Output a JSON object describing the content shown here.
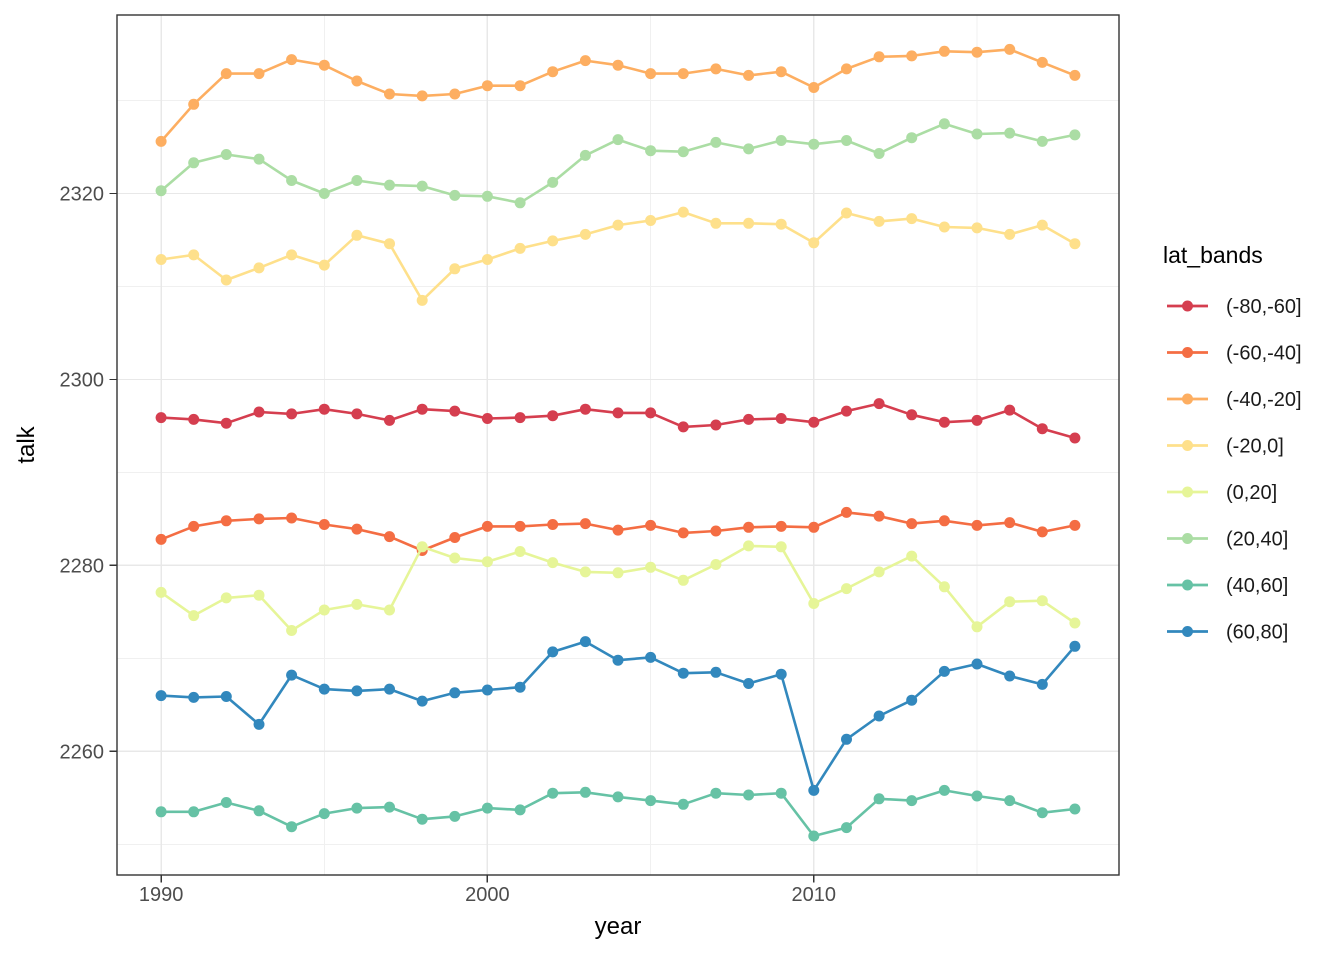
{
  "figure": {
    "background": "#ffffff",
    "panel_border_color": "#343434",
    "grid_major_color": "#e8e8e8",
    "grid_minor_color": "#f0f0f0",
    "tick_color": "#343434",
    "tick_label_color": "#4d4d4d"
  },
  "chart_data": {
    "type": "line",
    "title": "",
    "xlabel": "year",
    "ylabel": "talk",
    "legend_title": "lat_bands",
    "legend_position": "right",
    "grid": true,
    "xlim": [
      1988.65,
      2019.35
    ],
    "ylim": [
      2246.7,
      2339.2
    ],
    "x_major_ticks": [
      1990,
      2000,
      2010
    ],
    "x_minor_gridlines": [
      1995,
      2005,
      2015
    ],
    "y_major_ticks": [
      2260,
      2280,
      2300,
      2320
    ],
    "y_minor_gridlines": [
      2250,
      2270,
      2290,
      2310,
      2330
    ],
    "x": [
      1990,
      1991,
      1992,
      1993,
      1994,
      1995,
      1996,
      1997,
      1998,
      1999,
      2000,
      2001,
      2002,
      2003,
      2004,
      2005,
      2006,
      2007,
      2008,
      2009,
      2010,
      2011,
      2012,
      2013,
      2014,
      2015,
      2016,
      2017,
      2018
    ],
    "series": [
      {
        "name": "(-80,-60]",
        "color": "#d53e4f",
        "values": [
          2295.9,
          2295.7,
          2295.3,
          2296.5,
          2296.3,
          2296.8,
          2296.3,
          2295.6,
          2296.8,
          2296.6,
          2295.8,
          2295.9,
          2296.1,
          2296.8,
          2296.4,
          2296.4,
          2294.9,
          2295.1,
          2295.7,
          2295.8,
          2295.4,
          2296.6,
          2297.4,
          2296.2,
          2295.4,
          2295.6,
          2296.7,
          2294.7,
          2293.7
        ]
      },
      {
        "name": "(-60,-40]",
        "color": "#f46d43",
        "values": [
          2282.8,
          2284.2,
          2284.8,
          2285.0,
          2285.1,
          2284.4,
          2283.9,
          2283.1,
          2281.6,
          2283.0,
          2284.2,
          2284.2,
          2284.4,
          2284.5,
          2283.8,
          2284.3,
          2283.5,
          2283.7,
          2284.1,
          2284.2,
          2284.1,
          2285.7,
          2285.3,
          2284.5,
          2284.8,
          2284.3,
          2284.6,
          2283.6,
          2284.3
        ]
      },
      {
        "name": "(-40,-20]",
        "color": "#fdae61",
        "values": [
          2325.6,
          2329.6,
          2332.9,
          2332.9,
          2334.4,
          2333.8,
          2332.1,
          2330.7,
          2330.5,
          2330.7,
          2331.6,
          2331.6,
          2333.1,
          2334.3,
          2333.8,
          2332.9,
          2332.9,
          2333.4,
          2332.7,
          2333.1,
          2331.4,
          2333.4,
          2334.7,
          2334.8,
          2335.3,
          2335.2,
          2335.5,
          2334.1,
          2332.7
        ]
      },
      {
        "name": "(-20,0]",
        "color": "#fee08b",
        "values": [
          2312.9,
          2313.4,
          2310.7,
          2312.0,
          2313.4,
          2312.3,
          2315.5,
          2314.6,
          2308.5,
          2311.9,
          2312.9,
          2314.1,
          2314.9,
          2315.6,
          2316.6,
          2317.1,
          2318.0,
          2316.8,
          2316.8,
          2316.7,
          2314.7,
          2317.9,
          2317.0,
          2317.3,
          2316.4,
          2316.3,
          2315.6,
          2316.6,
          2314.6
        ]
      },
      {
        "name": "(0,20]",
        "color": "#e6f598",
        "values": [
          2277.1,
          2274.6,
          2276.5,
          2276.8,
          2273.0,
          2275.2,
          2275.8,
          2275.2,
          2282.0,
          2280.8,
          2280.4,
          2281.5,
          2280.3,
          2279.3,
          2279.2,
          2279.8,
          2278.4,
          2280.1,
          2282.1,
          2282.0,
          2275.9,
          2277.5,
          2279.3,
          2281.0,
          2277.7,
          2273.4,
          2276.1,
          2276.2,
          2273.8
        ]
      },
      {
        "name": "(20,40]",
        "color": "#abdda4",
        "values": [
          2320.3,
          2323.3,
          2324.2,
          2323.7,
          2321.4,
          2320.0,
          2321.4,
          2320.9,
          2320.8,
          2319.8,
          2319.7,
          2319.0,
          2321.2,
          2324.1,
          2325.8,
          2324.6,
          2324.5,
          2325.5,
          2324.8,
          2325.7,
          2325.3,
          2325.7,
          2324.3,
          2326.0,
          2327.5,
          2326.4,
          2326.5,
          2325.6,
          2326.3
        ]
      },
      {
        "name": "(40,60]",
        "color": "#66c2a5",
        "values": [
          2253.5,
          2253.5,
          2254.5,
          2253.6,
          2251.9,
          2253.3,
          2253.9,
          2254.0,
          2252.7,
          2253.0,
          2253.9,
          2253.7,
          2255.5,
          2255.6,
          2255.1,
          2254.7,
          2254.3,
          2255.5,
          2255.3,
          2255.5,
          2250.9,
          2251.8,
          2254.9,
          2254.7,
          2255.8,
          2255.2,
          2254.7,
          2253.4,
          2253.8
        ]
      },
      {
        "name": "(60,80]",
        "color": "#3288bd",
        "values": [
          2266.0,
          2265.8,
          2265.9,
          2262.9,
          2268.2,
          2266.7,
          2266.5,
          2266.7,
          2265.4,
          2266.3,
          2266.6,
          2266.9,
          2270.7,
          2271.8,
          2269.8,
          2270.1,
          2268.4,
          2268.5,
          2267.3,
          2268.3,
          2255.8,
          2261.3,
          2263.8,
          2265.5,
          2268.6,
          2269.4,
          2268.1,
          2267.2,
          2271.3
        ]
      }
    ]
  }
}
